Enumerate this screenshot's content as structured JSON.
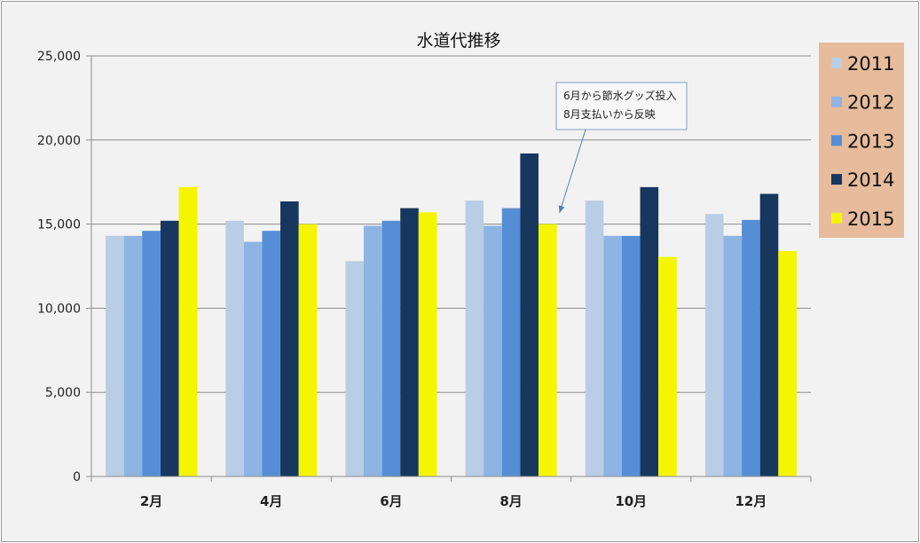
{
  "chart_data": {
    "type": "bar",
    "title": "水道代推移",
    "categories": [
      "2月",
      "4月",
      "6月",
      "8月",
      "10月",
      "12月"
    ],
    "series": [
      {
        "name": "2011",
        "color": "#b9cde5",
        "values": [
          14300,
          15200,
          12800,
          16400,
          16400,
          15600
        ]
      },
      {
        "name": "2012",
        "color": "#8eb4e3",
        "values": [
          14300,
          13950,
          14900,
          14900,
          14300,
          14300
        ]
      },
      {
        "name": "2013",
        "color": "#558ed5",
        "values": [
          14600,
          14600,
          15200,
          15950,
          14300,
          15250
        ]
      },
      {
        "name": "2014",
        "color": "#17375e",
        "values": [
          15200,
          16350,
          15950,
          19200,
          17200,
          16800
        ]
      },
      {
        "name": "2015",
        "color": "#f5f500",
        "values": [
          17200,
          15000,
          15700,
          15000,
          13050,
          13400
        ]
      }
    ],
    "ylim": [
      0,
      25000
    ],
    "yticks": [
      "0",
      "5,000",
      "10,000",
      "15,000",
      "20,000",
      "25,000"
    ],
    "ytick_values": [
      0,
      5000,
      10000,
      15000,
      20000,
      25000
    ],
    "grid": true,
    "legend_position": "right",
    "legend_bg": "#e6bc9c",
    "annotation": {
      "lines": [
        "6月から節水グッズ投入",
        "8月支払いから反映"
      ],
      "points_to_category": "8月"
    }
  }
}
